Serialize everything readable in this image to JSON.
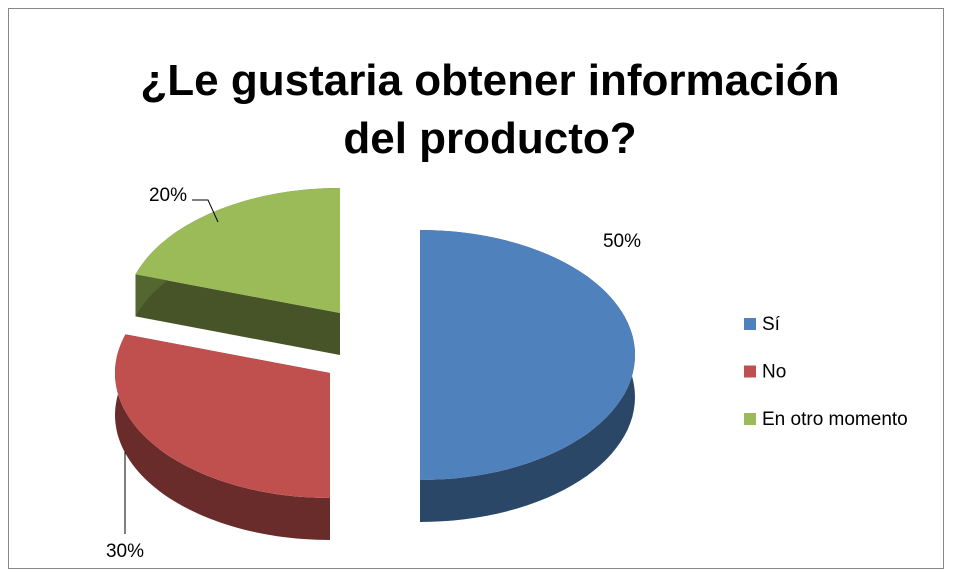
{
  "chart_data": {
    "type": "pie",
    "title": "¿Le gustaria obtener información del producto?",
    "categories": [
      "Sí",
      "No",
      "En otro momento"
    ],
    "values": [
      50,
      30,
      20
    ],
    "value_labels": [
      "50%",
      "30%",
      "20%"
    ],
    "colors": [
      "#4f81bd",
      "#c0504d",
      "#9bbb59"
    ],
    "legend": "right"
  }
}
